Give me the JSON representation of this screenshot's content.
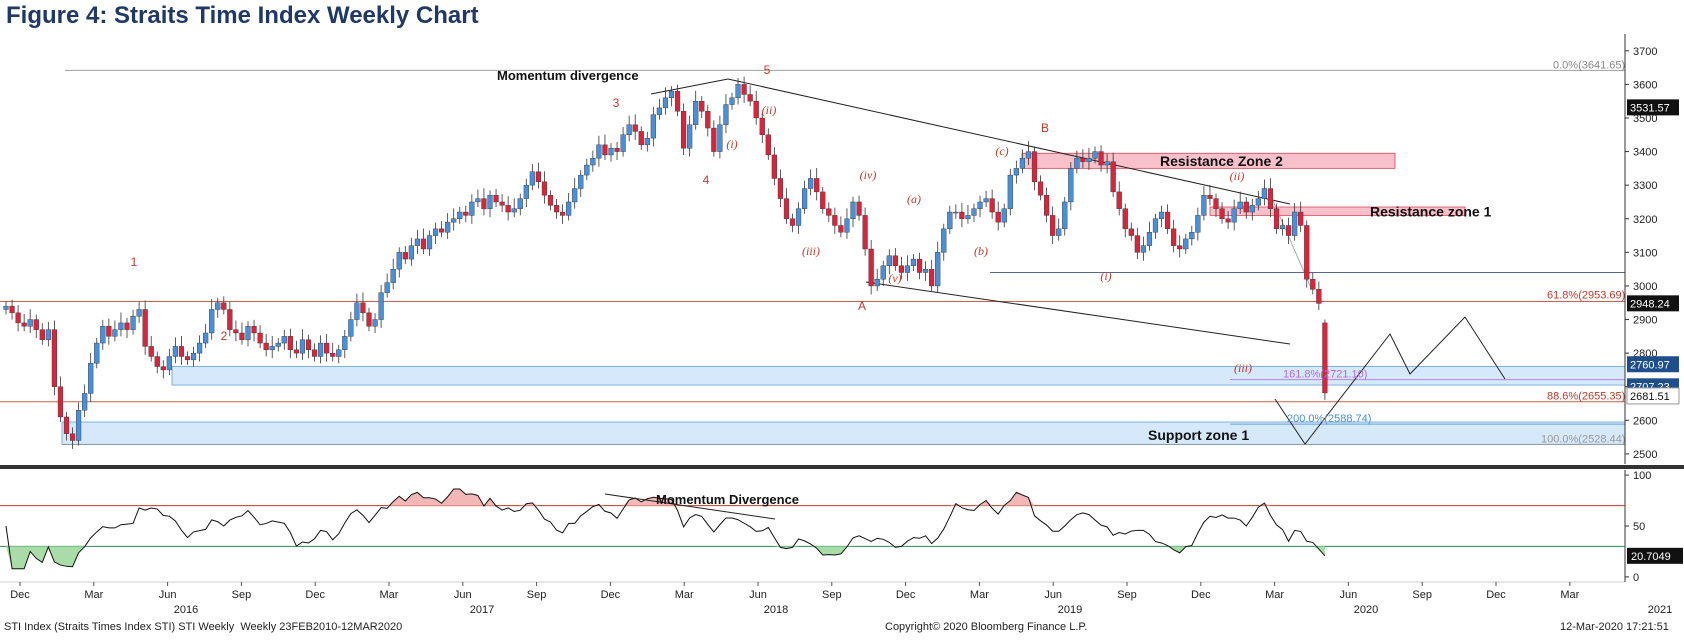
{
  "title": "Figure 4: Straits Time Index Weekly Chart",
  "footer": {
    "left": "STI Index (Straits Times Index STI) STI Weekly  Weekly 23FEB2010-12MAR2020",
    "center": "Copyright© 2020 Bloomberg Finance L.P.",
    "right": "12-Mar-2020 17:21:51"
  },
  "colors": {
    "up_candle": "#4a90d9",
    "down_candle": "#d9253b",
    "support_zone": "#cfe6fa",
    "resistance_zone": "#f6b6c1",
    "rsi_overbought_fill": "#f2b8b8",
    "rsi_oversold_fill": "#a9dca9"
  },
  "chart_data": [
    {
      "type": "candlestick",
      "ylim": [
        2470,
        3750
      ],
      "y_ticks": [
        2500,
        2600,
        2700,
        2800,
        2900,
        3000,
        3100,
        3200,
        3300,
        3400,
        3500,
        3600,
        3700
      ],
      "x_month_labels": [
        "Dec",
        "Mar",
        "Jun",
        "Sep",
        "Dec",
        "Mar",
        "Jun",
        "Sep",
        "Dec",
        "Mar",
        "Jun",
        "Sep",
        "Dec",
        "Mar",
        "Jun",
        "Sep",
        "Dec",
        "Mar",
        "Jun",
        "Sep",
        "Dec",
        "Mar"
      ],
      "x_year_labels": [
        "2016",
        "2017",
        "2018",
        "2019",
        "2020",
        "2021"
      ],
      "price_tags": [
        {
          "label": "3531.57",
          "value": 3531.57
        },
        {
          "label": "2948.24",
          "value": 2948.24
        },
        {
          "label": "2760.97",
          "value": 2760.97
        },
        {
          "label": "2707.23",
          "value": 2707.23
        },
        {
          "label": "2681.51",
          "value": 2681.51
        }
      ],
      "fib_levels": [
        {
          "label": "0.0%(3641.65)",
          "value": 3641.65
        },
        {
          "label": "61.8%(2953.69)",
          "value": 2953.69
        },
        {
          "label": "161.8%(2721.10)",
          "value": 2721.1
        },
        {
          "label": "88.6%(2655.35)",
          "value": 2655.35
        },
        {
          "label": "200.0%(2588.74)",
          "value": 2588.74
        },
        {
          "label": "100.0%(2528.44)",
          "value": 2528.44
        }
      ],
      "zones": [
        {
          "label": "Resistance Zone 2",
          "low": 3350,
          "high": 3395
        },
        {
          "label": "Resistance zone 1",
          "low": 3210,
          "high": 3235
        },
        {
          "label": "",
          "low": 2705,
          "high": 2760
        },
        {
          "label": "Support zone 1",
          "low": 2528,
          "high": 2595
        }
      ],
      "annotations": {
        "momentum": "Momentum divergence",
        "waves": [
          "1",
          "2",
          "3",
          "4",
          "5",
          "(i)",
          "(ii)",
          "(iii)",
          "(iv)",
          "(v)",
          "A",
          "(a)",
          "(b)",
          "(c)",
          "B",
          "(i)",
          "(ii)",
          "(iii)"
        ]
      },
      "weekly_close": [
        2940,
        2920,
        2890,
        2880,
        2900,
        2870,
        2840,
        2870,
        2700,
        2610,
        2560,
        2540,
        2630,
        2680,
        2770,
        2830,
        2880,
        2850,
        2870,
        2890,
        2870,
        2910,
        2930,
        2820,
        2790,
        2760,
        2750,
        2790,
        2820,
        2790,
        2780,
        2800,
        2830,
        2860,
        2930,
        2950,
        2930,
        2870,
        2860,
        2840,
        2880,
        2860,
        2830,
        2810,
        2820,
        2830,
        2850,
        2810,
        2800,
        2840,
        2810,
        2790,
        2830,
        2800,
        2790,
        2810,
        2850,
        2900,
        2950,
        2920,
        2880,
        2900,
        2980,
        3010,
        3050,
        3100,
        3080,
        3120,
        3140,
        3110,
        3150,
        3170,
        3160,
        3190,
        3200,
        3220,
        3210,
        3250,
        3260,
        3230,
        3270,
        3250,
        3240,
        3220,
        3230,
        3260,
        3300,
        3340,
        3310,
        3270,
        3240,
        3220,
        3210,
        3250,
        3290,
        3330,
        3360,
        3380,
        3420,
        3390,
        3410,
        3400,
        3450,
        3480,
        3460,
        3420,
        3440,
        3510,
        3530,
        3560,
        3580,
        3520,
        3410,
        3480,
        3550,
        3520,
        3470,
        3400,
        3480,
        3540,
        3560,
        3600,
        3570,
        3550,
        3500,
        3450,
        3390,
        3320,
        3260,
        3200,
        3180,
        3230,
        3290,
        3320,
        3280,
        3230,
        3210,
        3180,
        3160,
        3200,
        3250,
        3210,
        3110,
        3000,
        3020,
        3060,
        3090,
        3060,
        3040,
        3060,
        3080,
        3040,
        3050,
        3000,
        3100,
        3170,
        3220,
        3220,
        3200,
        3210,
        3230,
        3250,
        3260,
        3220,
        3190,
        3230,
        3330,
        3350,
        3380,
        3400,
        3310,
        3270,
        3210,
        3150,
        3170,
        3250,
        3350,
        3380,
        3370,
        3380,
        3400,
        3360,
        3370,
        3280,
        3230,
        3170,
        3150,
        3100,
        3120,
        3160,
        3200,
        3220,
        3170,
        3120,
        3110,
        3140,
        3160,
        3210,
        3270,
        3260,
        3230,
        3200,
        3190,
        3230,
        3250,
        3220,
        3240,
        3260,
        3290,
        3230,
        3170,
        3180,
        3150,
        3220,
        3180,
        3020,
        2990,
        2948
      ]
    },
    {
      "type": "line",
      "name": "RSI",
      "ylim": [
        -5,
        105
      ],
      "y_ticks": [
        0,
        50,
        100
      ],
      "overbought": 70,
      "oversold": 30,
      "last_value_label": "20.7049",
      "last_value": 20.7049,
      "annotation": "Momentum Divergence"
    }
  ]
}
